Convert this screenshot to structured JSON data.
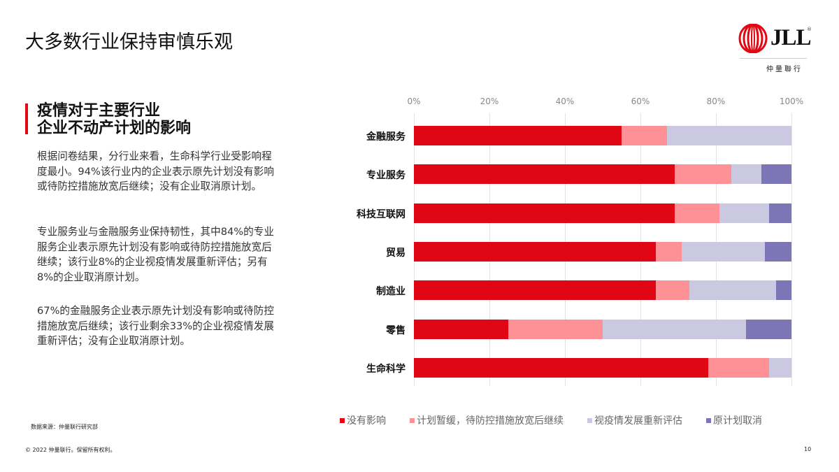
{
  "slide": {
    "title": "大多数行业保持审慎乐观",
    "page_number": "10",
    "source": "数据来源：仲量联行研究部",
    "copyright": "© 2022 仲量联行。保留所有权利。"
  },
  "logo": {
    "brand": "JLL",
    "registered": "®",
    "chinese_name": "仲量聯行",
    "color": "#e30613"
  },
  "sidebar": {
    "section_title_line1": "疫情对于主要行业",
    "section_title_line2": "企业不动产计划的影响",
    "accent_color": "#e30613",
    "paragraphs": [
      "根据问卷结果，分行业来看，生命科学行业受影响程度最小。94%该行业内的企业表示原先计划没有影响或待防控措施放宽后继续；没有企业取消原计划。",
      "专业服务业与金融服务业保持韧性，其中84%的专业服务企业表示原先计划没有影响或待防控措施放宽后继续；该行业8%的企业视疫情发展重新评估；另有8%的企业取消原计划。",
      "67%的金融服务企业表示原先计划没有影响或待防控措施放宽后继续；该行业剩余33%的企业视疫情发展重新评估；没有企业取消原计划。"
    ]
  },
  "chart_data": {
    "type": "bar",
    "orientation": "horizontal",
    "stacked": true,
    "percent": true,
    "title": "疫情对于主要行业企业不动产计划的影响",
    "xlabel": "",
    "ylabel": "",
    "xlim": [
      0,
      100
    ],
    "x_ticks": [
      "0%",
      "20%",
      "40%",
      "60%",
      "80%",
      "100%"
    ],
    "x_axis_position": "top",
    "grid": true,
    "legend_position": "bottom",
    "categories": [
      "金融服务",
      "专业服务",
      "科技互联网",
      "贸易",
      "制造业",
      "零售",
      "生命科学"
    ],
    "series": [
      {
        "name": "没有影响",
        "color": "#e10613",
        "values": [
          55,
          69,
          69,
          64,
          64,
          25,
          78
        ]
      },
      {
        "name": "计划暂缓，待防控措施放宽后继续",
        "color": "#fd9196",
        "values": [
          12,
          15,
          12,
          7,
          9,
          25,
          16
        ]
      },
      {
        "name": "视疫情发展重新评估",
        "color": "#cbc8e2",
        "values": [
          33,
          8,
          13,
          22,
          23,
          38,
          6
        ]
      },
      {
        "name": "原计划取消",
        "color": "#7c75b6",
        "values": [
          0,
          8,
          6,
          7,
          4,
          12,
          0
        ]
      }
    ]
  },
  "legend": {
    "items": [
      {
        "label": "没有影响",
        "color": "#e10613"
      },
      {
        "label": "计划暂缓，待防控措施放宽后继续",
        "color": "#fd9196"
      },
      {
        "label": "视疫情发展重新评估",
        "color": "#cbc8e2"
      },
      {
        "label": "原计划取消",
        "color": "#7c75b6"
      }
    ]
  }
}
